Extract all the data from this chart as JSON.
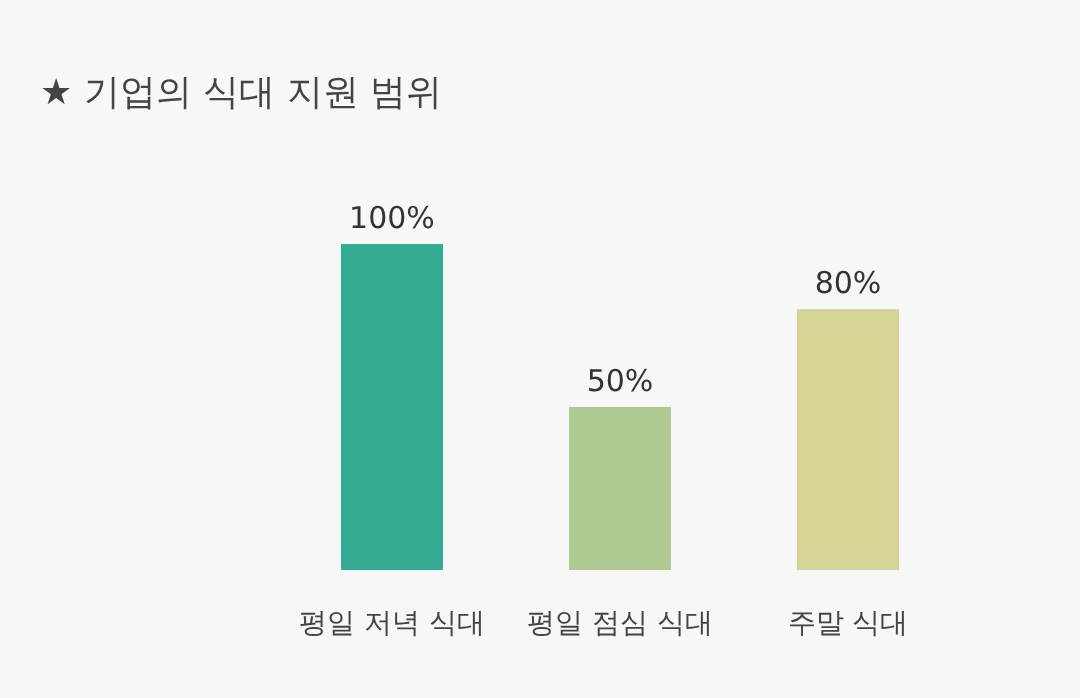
{
  "chart_data": {
    "type": "bar",
    "title": "★ 기업의 식대 지원 범위",
    "categories": [
      "평일 저녁 식대",
      "평일 점심 식대",
      "주말 식대"
    ],
    "values": [
      100,
      50,
      80
    ],
    "value_labels": [
      "100%",
      "50%",
      "80%"
    ],
    "colors": [
      "#33ac93",
      "#adc991",
      "#d3d495"
    ]
  }
}
